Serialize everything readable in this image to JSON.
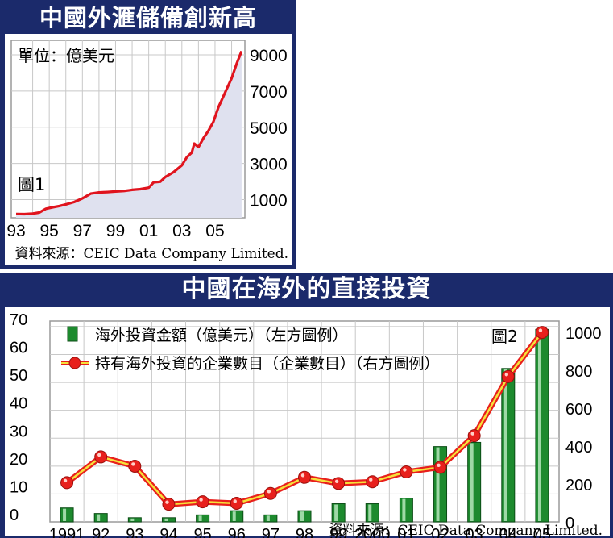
{
  "chart_data": [
    {
      "type": "area",
      "title": "中國外滙儲備創新高",
      "unit_label": "單位：億美元",
      "figure_label": "圖1",
      "source": "資料來源：CEIC Data Company Limited.",
      "x_tick_labels": [
        "93",
        "95",
        "97",
        "99",
        "01",
        "03",
        "05"
      ],
      "y_tick_labels": [
        "1000",
        "3000",
        "5000",
        "7000",
        "9000"
      ],
      "ylim": [
        0,
        9800
      ],
      "xlim": [
        1993,
        2006.8
      ],
      "grid": true,
      "line_color": "#e0141e",
      "fill_color": "#dfe1ef",
      "x": [
        1993.0,
        1993.5,
        1994.0,
        1994.4,
        1994.8,
        1995.2,
        1995.6,
        1996.0,
        1996.5,
        1997.0,
        1997.5,
        1998.0,
        1998.5,
        1999.0,
        1999.5,
        2000.0,
        2000.5,
        2001.0,
        2001.3,
        2001.7,
        2002.0,
        2002.5,
        2003.0,
        2003.3,
        2003.6,
        2003.75,
        2004.0,
        2004.3,
        2004.6,
        2004.9,
        2005.2,
        2005.6,
        2006.0,
        2006.3,
        2006.6
      ],
      "y": [
        210,
        200,
        230,
        290,
        500,
        580,
        650,
        740,
        870,
        1070,
        1330,
        1400,
        1420,
        1450,
        1480,
        1540,
        1580,
        1660,
        1960,
        1990,
        2250,
        2520,
        2900,
        3350,
        3600,
        4100,
        3900,
        4400,
        4800,
        5300,
        6100,
        6900,
        7700,
        8500,
        9200
      ]
    },
    {
      "type": "bar",
      "title": "中國在海外的直接投資",
      "figure_label": "圖2",
      "source": "資料來源：CEIC Data Company Limited.",
      "categories": [
        "1991",
        "92",
        "93",
        "94",
        "95",
        "96",
        "97",
        "98",
        "99",
        "2000",
        "01",
        "02",
        "03",
        "04",
        "05"
      ],
      "left_axis": {
        "ticks": [
          "0",
          "10",
          "20",
          "30",
          "40",
          "50",
          "60",
          "70"
        ],
        "ylim": [
          0,
          72
        ]
      },
      "right_axis": {
        "ticks": [
          "0",
          "200",
          "400",
          "600",
          "800",
          "1000"
        ],
        "ylim": [
          0,
          1060
        ]
      },
      "grid": true,
      "series": [
        {
          "name": "海外投資金額（億美元）（左方圖例）",
          "kind": "bar",
          "axis": "left",
          "color": "#1d8a2e",
          "values": [
            5,
            3,
            1.5,
            1.5,
            2.5,
            4,
            2.5,
            4,
            6.5,
            6.5,
            8.5,
            27,
            28.5,
            55,
            69
          ]
        },
        {
          "name": "持有海外投資的企業數目（企業數目）（右方圖例）",
          "kind": "line",
          "axis": "right",
          "color": "#e8201c",
          "values": [
            207,
            343,
            294,
            93,
            106,
            98,
            150,
            235,
            203,
            212,
            264,
            288,
            455,
            767,
            1000
          ]
        }
      ],
      "legend_position": "top-left"
    }
  ]
}
